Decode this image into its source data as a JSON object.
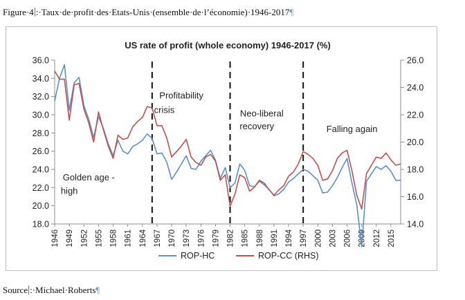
{
  "document": {
    "caption_prefix": "Figure·4",
    "caption_text": ":·Taux·de·profit·des·Etats-Unis·(ensemble·de·l’économie)·1946-2017",
    "pilcrow": "¶",
    "source_prefix": "Source",
    "source_text": ":·Michael·Roberts"
  },
  "chart_data": {
    "type": "line",
    "title": "US rate of profit (whole economy) 1946-2017 (%)",
    "x": [
      1946,
      1947,
      1948,
      1949,
      1950,
      1951,
      1952,
      1953,
      1954,
      1955,
      1956,
      1957,
      1958,
      1959,
      1960,
      1961,
      1962,
      1963,
      1964,
      1965,
      1966,
      1967,
      1968,
      1969,
      1970,
      1971,
      1972,
      1973,
      1974,
      1975,
      1976,
      1977,
      1978,
      1979,
      1980,
      1981,
      1982,
      1983,
      1984,
      1985,
      1986,
      1987,
      1988,
      1989,
      1990,
      1991,
      1992,
      1993,
      1994,
      1995,
      1996,
      1997,
      1998,
      1999,
      2000,
      2001,
      2002,
      2003,
      2004,
      2005,
      2006,
      2007,
      2008,
      2009,
      2010,
      2011,
      2012,
      2013,
      2014,
      2015,
      2016,
      2017
    ],
    "x_tick_labels": [
      "1946",
      "1949",
      "1952",
      "1955",
      "1958",
      "1961",
      "1964",
      "1967",
      "1970",
      "1973",
      "1976",
      "1979",
      "1982",
      "1985",
      "1988",
      "1991",
      "1994",
      "1997",
      "2000",
      "2003",
      "2006",
      "2009",
      "2012",
      "2015"
    ],
    "y_left": {
      "ylim": [
        18.0,
        36.0
      ],
      "ticks": [
        "18.0",
        "20.0",
        "22.0",
        "24.0",
        "26.0",
        "28.0",
        "30.0",
        "32.0",
        "34.0",
        "36.0"
      ]
    },
    "y_right": {
      "ylim": [
        14.0,
        26.0
      ],
      "ticks": [
        "14.0",
        "16.0",
        "18.0",
        "20.0",
        "22.0",
        "24.0",
        "26.0"
      ]
    },
    "series": [
      {
        "name": "ROP-HC",
        "axis": "left",
        "color": "#5b8fd1",
        "values": [
          31.5,
          34.0,
          35.5,
          30.5,
          33.5,
          34.1,
          31.0,
          29.5,
          27.5,
          29.8,
          28.5,
          26.8,
          25.5,
          27.2,
          26.0,
          25.7,
          26.5,
          26.8,
          27.2,
          27.9,
          27.4,
          25.7,
          25.8,
          24.8,
          22.9,
          23.7,
          24.6,
          25.5,
          24.1,
          24.0,
          24.9,
          25.5,
          26.1,
          25.0,
          23.0,
          24.2,
          22.0,
          22.5,
          24.6,
          23.9,
          22.2,
          22.1,
          22.7,
          22.3,
          21.8,
          21.1,
          21.3,
          21.8,
          22.6,
          23.0,
          23.5,
          24.0,
          23.8,
          23.3,
          22.8,
          21.4,
          21.5,
          22.2,
          23.1,
          24.2,
          25.2,
          22.5,
          20.1,
          15.5,
          22.7,
          23.5,
          24.3,
          24.0,
          24.4,
          23.8,
          22.8,
          22.8
        ]
      },
      {
        "name": "ROP-CC (RHS)",
        "axis": "right",
        "color": "#c0504d",
        "values": [
          25.2,
          24.6,
          24.6,
          21.6,
          24.2,
          24.3,
          22.4,
          21.4,
          20.0,
          22.2,
          20.9,
          19.7,
          18.8,
          20.5,
          20.2,
          20.3,
          21.1,
          21.5,
          21.8,
          22.6,
          22.5,
          21.2,
          21.2,
          20.3,
          18.9,
          19.3,
          19.7,
          20.2,
          18.9,
          18.5,
          18.3,
          18.9,
          19.1,
          18.6,
          17.2,
          17.6,
          15.3,
          16.2,
          17.6,
          17.4,
          16.4,
          16.7,
          17.2,
          17.0,
          16.5,
          16.1,
          16.5,
          16.8,
          17.5,
          17.8,
          18.4,
          19.3,
          19.1,
          18.8,
          18.3,
          17.2,
          17.3,
          17.9,
          18.8,
          19.2,
          19.4,
          17.9,
          16.1,
          15.1,
          17.7,
          18.3,
          18.9,
          18.8,
          19.2,
          18.7,
          18.3,
          18.4
        ]
      }
    ],
    "vlines": [
      1966,
      1982,
      1997
    ],
    "annotations": [
      {
        "text": "Profitability",
        "x": 1972.0,
        "y": 31.8
      },
      {
        "text": "crisis",
        "x": 1968.5,
        "y": 30.2
      },
      {
        "text": "Neo-liberal",
        "x": 1988.5,
        "y": 29.8
      },
      {
        "text": "recovery",
        "x": 1987.5,
        "y": 28.4
      },
      {
        "text": "Falling again",
        "x": 2007.0,
        "y": 28.1
      },
      {
        "text": "Golden age -",
        "x": 1953.0,
        "y": 22.8
      },
      {
        "text": "high",
        "x": 1949.0,
        "y": 21.3
      }
    ],
    "legend_position": "bottom-center",
    "grid": false
  }
}
